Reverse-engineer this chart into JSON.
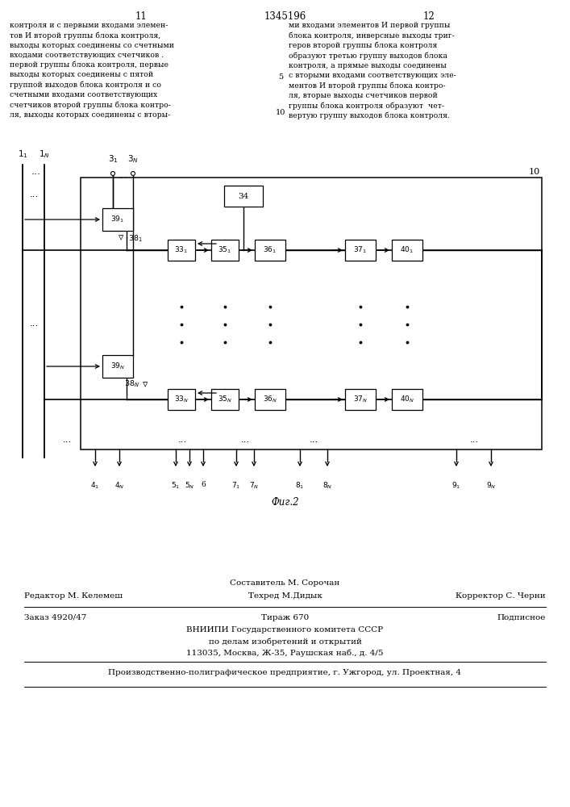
{
  "page_number_left": "11",
  "page_number_center": "1345196",
  "page_number_right": "12",
  "text_left": "контроля и с первыми входами элемен-\nтов И второй группы блока контроля,\nвыходы которых соединены со счетными\nвходами соответствующих счетчиков .\nпервой группы блока контроля, первые\nвыходы которых соединены с пятой\nгруппой выходов блока контроля и со\nсчетными входами соответствующих\nсчетчиков второй группы блока контро-\nля, выходы которых соединены с вторы-",
  "text_right": "ми входами элементов И первой группы\nблока контроля, инверсные выходы триг-\nгеров второй группы блока контроля\nобразуют третью группу выходов блока\nконтроля, а прямые выходы соединены\nс вторыми входами соответствующих эле-\nментов И второй группы блока контро-\nля, вторые выходы счетчиков первой\nгруппы блока контроля образуют  чет-\nвертую группу выходов блока контроля.",
  "fig_label": "Фиг.2",
  "footer_editor": "Редактор М. Келемеш",
  "footer_composer": "Составитель М. Сорочан",
  "footer_techred": "Техред М.Дидык",
  "footer_corrector": "Корректор С. Черни",
  "footer_order": "Заказ 4920/47",
  "footer_tirazh": "Тираж 670",
  "footer_podpisnoe": "Подписное",
  "footer_org1": "ВНИИПИ Государственного комитета СССР",
  "footer_org2": "по делам изобретений и открытий",
  "footer_org3": "113035, Москва, Ж-35, Раушская наб., д. 4/5",
  "footer_prod": "Производственно-полиграфическое предприятие, г. Ужгород, ул. Проектная, 4",
  "bg_color": "#ffffff",
  "text_color": "#000000"
}
